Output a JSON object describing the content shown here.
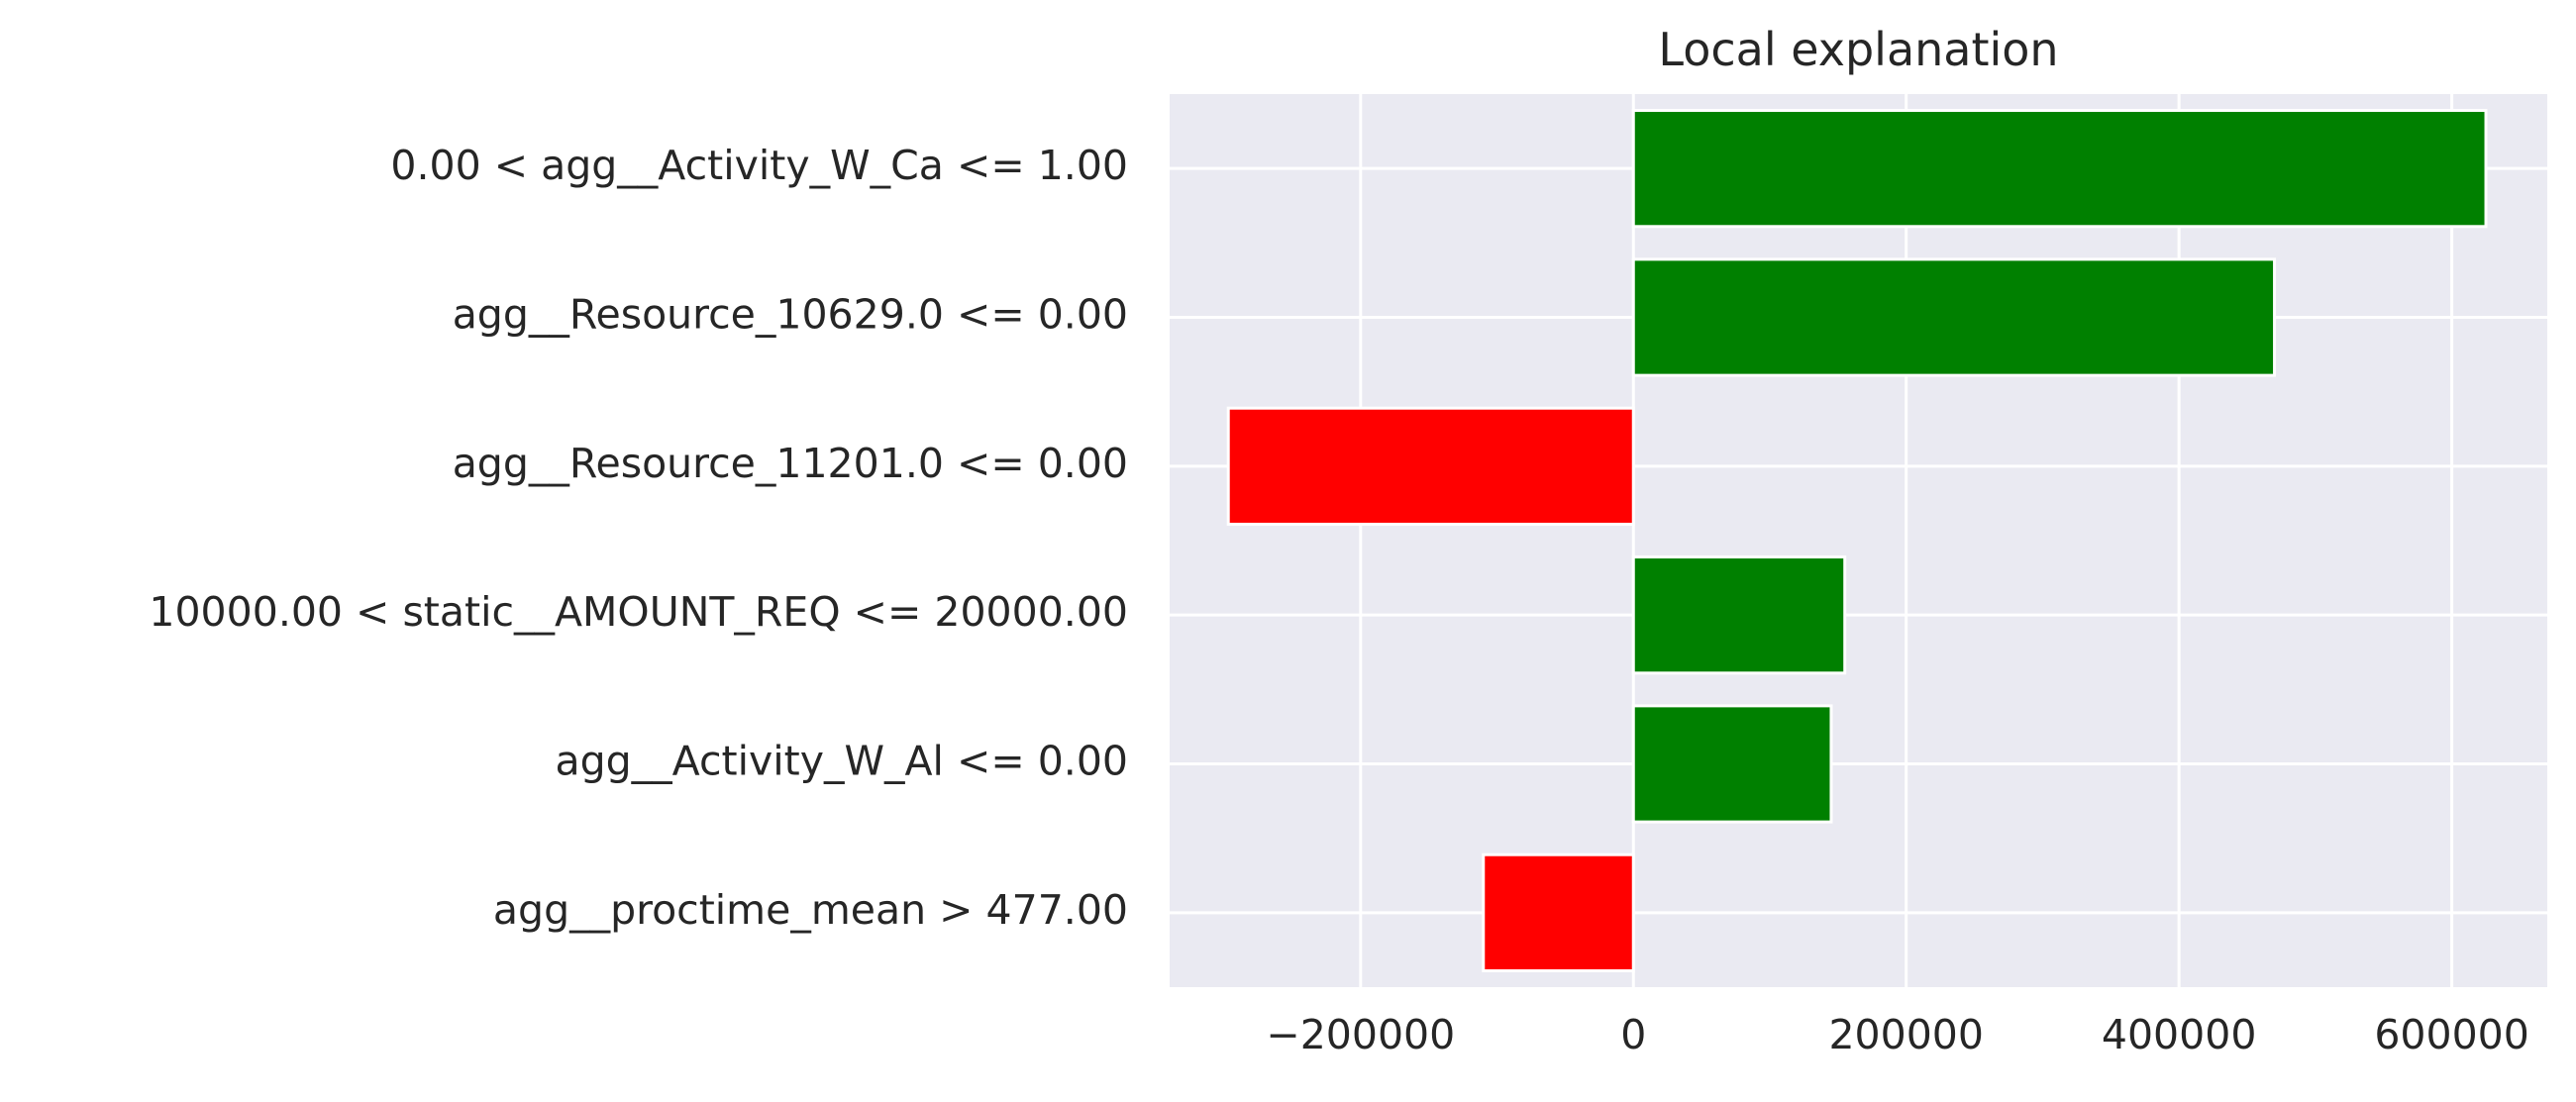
{
  "chart_data": {
    "type": "bar",
    "orientation": "horizontal",
    "title": "Local explanation",
    "xlabel": "",
    "ylabel": "",
    "categories": [
      "0.00 < agg__Activity_W_Ca <= 1.00",
      "agg__Resource_10629.0 <= 0.00",
      "agg__Resource_11201.0 <= 0.00",
      "10000.00 < static__AMOUNT_REQ <= 20000.00",
      "agg__Activity_W_Al <= 0.00",
      "agg__proctime_mean > 477.00"
    ],
    "values": [
      625000,
      470000,
      -297000,
      155000,
      145000,
      -110000
    ],
    "colors": [
      "#008000",
      "#008000",
      "#ff0000",
      "#008000",
      "#008000",
      "#ff0000"
    ],
    "xlim": [
      -340000,
      670000
    ],
    "xticks": [
      -200000,
      0,
      200000,
      400000,
      600000
    ],
    "xtick_labels": [
      "−200000",
      "0",
      "200000",
      "400000",
      "600000"
    ],
    "grid": true,
    "background": "#eaeaf2",
    "positive_color": "#008000",
    "negative_color": "#ff0000"
  }
}
